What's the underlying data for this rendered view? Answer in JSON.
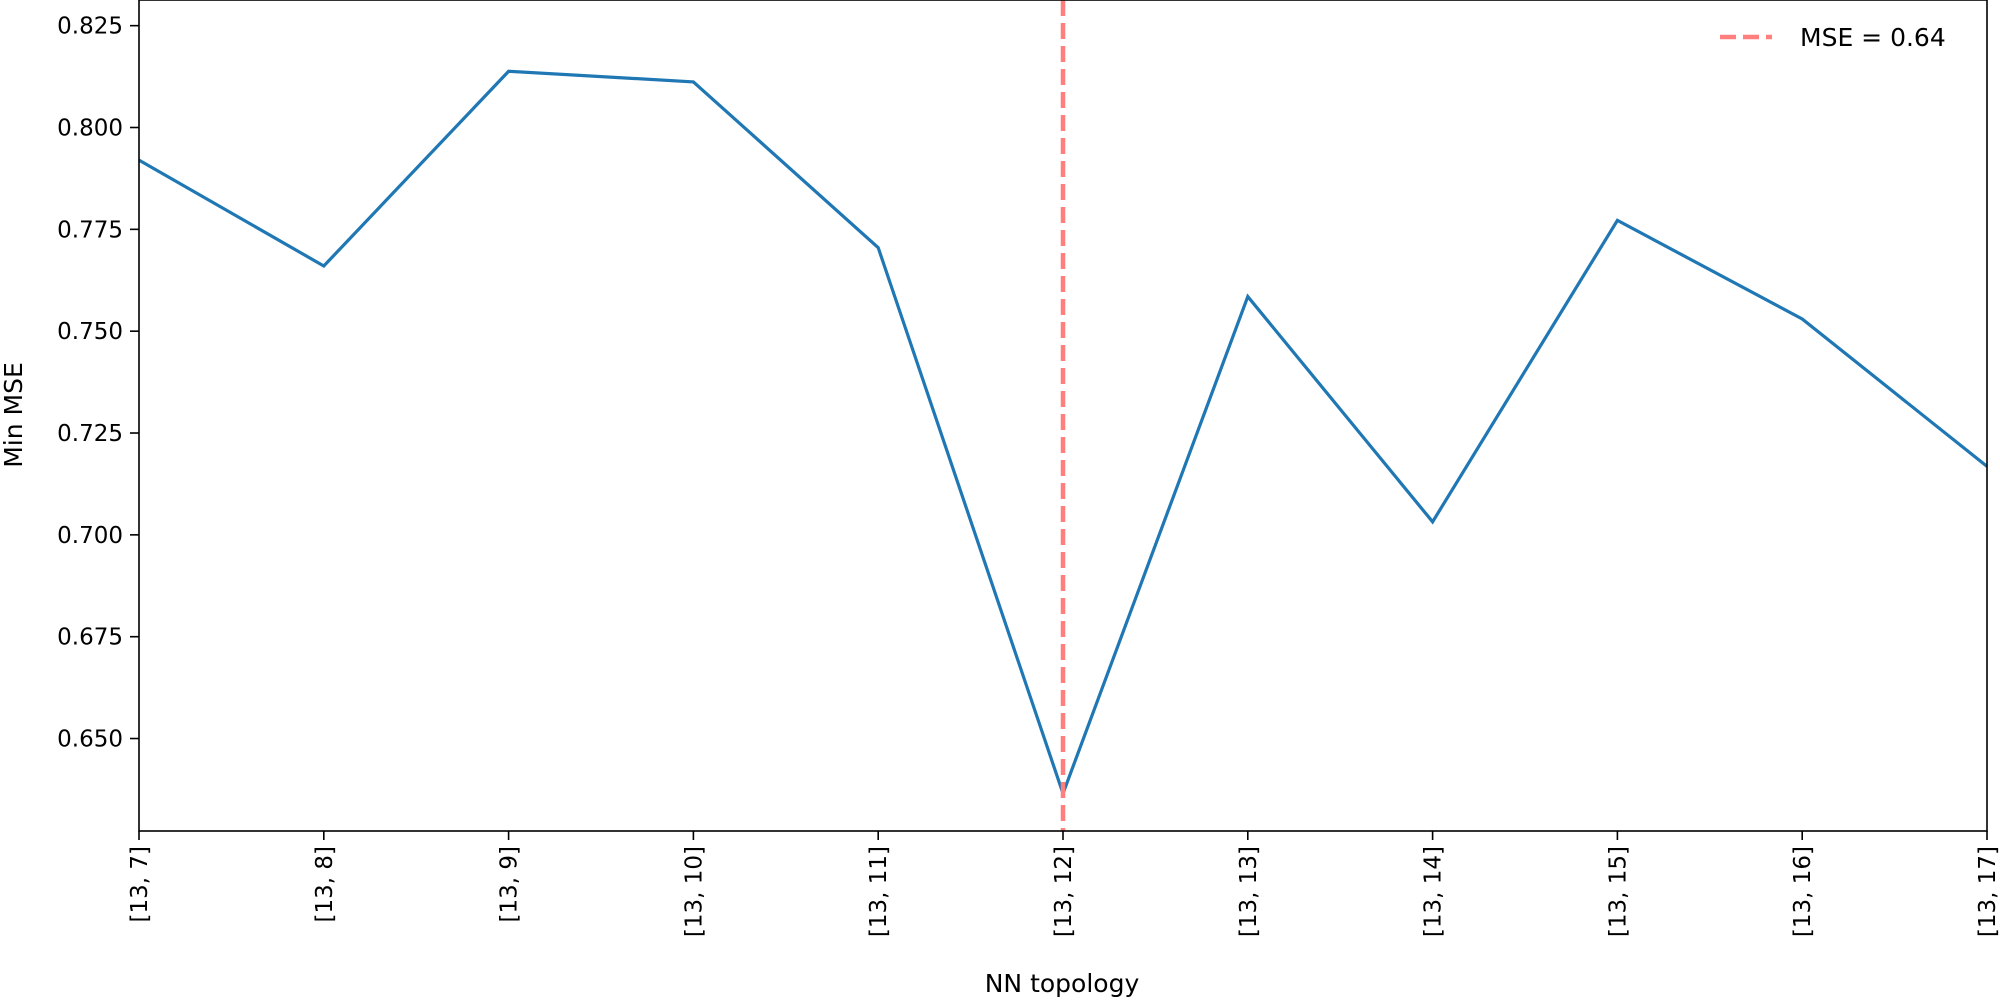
{
  "chart_data": {
    "type": "line",
    "xlabel": "NN topology",
    "ylabel": "Min MSE",
    "categories": [
      "[13, 7]",
      "[13, 8]",
      "[13, 9]",
      "[13, 10]",
      "[13, 11]",
      "[13, 12]",
      "[13, 13]",
      "[13, 14]",
      "[13, 15]",
      "[13, 16]",
      "[13, 17]"
    ],
    "series": [
      {
        "values": [
          0.792,
          0.766,
          0.8138,
          0.8112,
          0.7705,
          0.6365,
          0.7585,
          0.7032,
          0.7772,
          0.753,
          0.7168
        ],
        "color": "#1f77b4"
      }
    ],
    "yticks": [
      "0.650",
      "0.675",
      "0.700",
      "0.725",
      "0.750",
      "0.775",
      "0.800",
      "0.825"
    ],
    "ylim": [
      0.6273,
      0.8313
    ],
    "reference_line": {
      "orientation": "vertical",
      "x_category": "[13, 12]",
      "style": "dashed",
      "color": "#ff7f7f",
      "legend_label": "MSE = 0.64"
    },
    "legend_position": "top-right",
    "grid": false
  }
}
